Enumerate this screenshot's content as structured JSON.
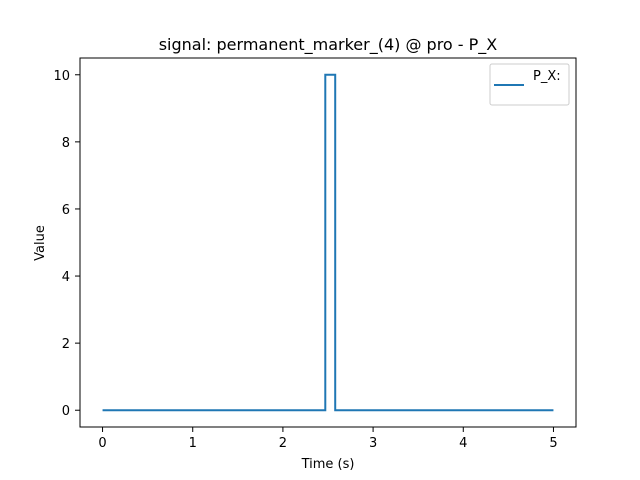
{
  "chart_data": {
    "type": "line",
    "title": "signal: permanent_marker_(4) @ pro - P_X",
    "xlabel": "Time (s)",
    "ylabel": "Value",
    "xlim": [
      -0.25,
      5.25
    ],
    "ylim": [
      -0.5,
      10.5
    ],
    "xticks": [
      0,
      1,
      2,
      3,
      4,
      5
    ],
    "yticks": [
      0,
      2,
      4,
      6,
      8,
      10
    ],
    "grid": false,
    "legend_position": "top-right",
    "series": [
      {
        "name": "P_X:",
        "color": "#1f77b4",
        "x": [
          0,
          2.47,
          2.47,
          2.58,
          2.58,
          5
        ],
        "y": [
          0,
          0,
          10,
          10,
          0,
          0
        ]
      }
    ]
  }
}
